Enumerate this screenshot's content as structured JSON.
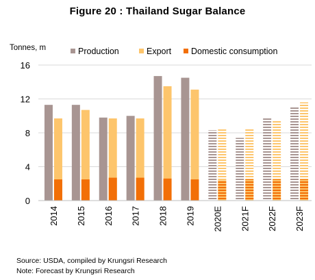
{
  "title": "Figure 20 : Thailand Sugar Balance",
  "source": "Source: USDA, compiled by Krungsri Research",
  "note": "Note: Forecast by Krungsri Research",
  "colors": {
    "production": "#a89592",
    "export": "#fdc56c",
    "domestic": "#f26f07",
    "grid": "#d9d9d9",
    "axis": "#bfbfbf"
  },
  "chart_data": {
    "type": "bar",
    "title": "Figure 20 : Thailand Sugar Balance",
    "ylabel": "Tonnes, m",
    "xlabel": "",
    "ylim": [
      0,
      16
    ],
    "yticks": [
      0,
      4,
      8,
      12,
      16
    ],
    "grid": true,
    "legend_position": "top",
    "categories": [
      "2014",
      "2015",
      "2016",
      "2017",
      "2018",
      "2019",
      "2020E",
      "2021F",
      "2022F",
      "2023F"
    ],
    "forecast": [
      false,
      false,
      false,
      false,
      false,
      false,
      true,
      true,
      true,
      true
    ],
    "series": [
      {
        "name": "Production",
        "values": [
          11.3,
          11.3,
          9.8,
          10.0,
          14.7,
          14.5,
          8.3,
          7.4,
          9.8,
          11.1
        ]
      },
      {
        "name": "Export",
        "values": [
          9.7,
          10.7,
          9.7,
          9.7,
          13.5,
          13.1,
          8.4,
          8.5,
          9.4,
          11.6
        ]
      },
      {
        "name": "Domestic consumption",
        "values": [
          2.5,
          2.5,
          2.7,
          2.7,
          2.6,
          2.5,
          2.4,
          2.5,
          2.5,
          2.5
        ]
      }
    ]
  }
}
